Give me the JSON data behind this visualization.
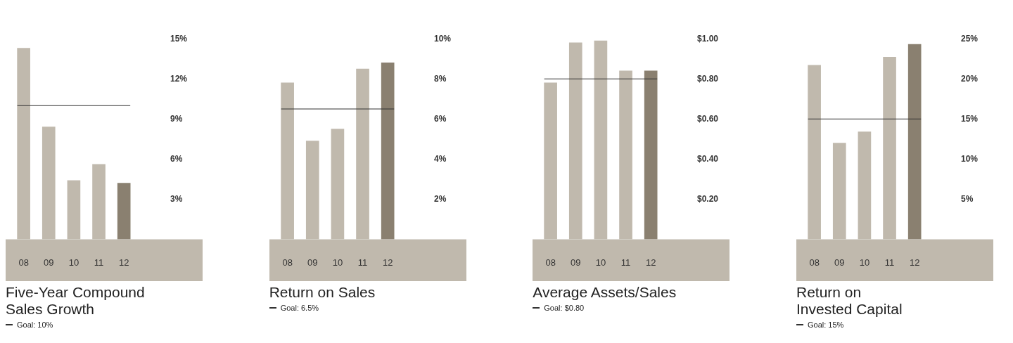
{
  "chart_data": [
    {
      "type": "bar",
      "title": "Five-Year Compound Sales Growth",
      "categories": [
        "08",
        "09",
        "10",
        "11",
        "12"
      ],
      "values": [
        14.3,
        8.4,
        4.4,
        5.6,
        4.2
      ],
      "colors": [
        "#c0b9ad",
        "#c0b9ad",
        "#c0b9ad",
        "#c0b9ad",
        "#8a8070"
      ],
      "ylim": [
        0,
        15
      ],
      "yticks": [
        {
          "value": 3,
          "label": "3%"
        },
        {
          "value": 6,
          "label": "6%"
        },
        {
          "value": 9,
          "label": "9%"
        },
        {
          "value": 12,
          "label": "12%"
        },
        {
          "value": 15,
          "label": "15%"
        }
      ],
      "ref_lines": [
        {
          "axis": "y",
          "value": 10,
          "label": "Goal: 10%",
          "color": "#333333"
        }
      ]
    },
    {
      "type": "bar",
      "title": "Return on Sales",
      "categories": [
        "08",
        "09",
        "10",
        "11",
        "12"
      ],
      "values": [
        7.8,
        4.9,
        5.5,
        8.5,
        8.8
      ],
      "colors": [
        "#c0b9ad",
        "#c0b9ad",
        "#c0b9ad",
        "#c0b9ad",
        "#8a8070"
      ],
      "ylim": [
        0,
        10
      ],
      "yticks": [
        {
          "value": 2,
          "label": "2%"
        },
        {
          "value": 4,
          "label": "4%"
        },
        {
          "value": 6,
          "label": "6%"
        },
        {
          "value": 8,
          "label": "8%"
        },
        {
          "value": 10,
          "label": "10%"
        }
      ],
      "ref_lines": [
        {
          "axis": "y",
          "value": 6.5,
          "label": "Goal: 6.5%",
          "color": "#333333"
        }
      ]
    },
    {
      "type": "bar",
      "title": "Average Assets/Sales",
      "categories": [
        "08",
        "09",
        "10",
        "11",
        "12"
      ],
      "values": [
        0.78,
        0.98,
        0.99,
        0.84,
        0.84
      ],
      "colors": [
        "#c0b9ad",
        "#c0b9ad",
        "#c0b9ad",
        "#c0b9ad",
        "#8a8070"
      ],
      "ylim": [
        0,
        1
      ],
      "yticks": [
        {
          "value": 0.2,
          "label": "$0.20"
        },
        {
          "value": 0.4,
          "label": "$0.40"
        },
        {
          "value": 0.6,
          "label": "$0.60"
        },
        {
          "value": 0.8,
          "label": "$0.80"
        },
        {
          "value": 1,
          "label": "$1.00"
        }
      ],
      "ref_lines": [
        {
          "axis": "y",
          "value": 0.8,
          "label": "Goal: $0.80",
          "color": "#333333"
        }
      ]
    },
    {
      "type": "bar",
      "title": "Return on Invested Capital",
      "categories": [
        "08",
        "09",
        "10",
        "11",
        "12"
      ],
      "values": [
        21.7,
        12.0,
        13.4,
        22.7,
        24.3
      ],
      "colors": [
        "#c0b9ad",
        "#c0b9ad",
        "#c0b9ad",
        "#c0b9ad",
        "#8a8070"
      ],
      "ylim": [
        0,
        25
      ],
      "yticks": [
        {
          "value": 5,
          "label": "5%"
        },
        {
          "value": 10,
          "label": "10%"
        },
        {
          "value": 15,
          "label": "15%"
        },
        {
          "value": 20,
          "label": "20%"
        },
        {
          "value": 25,
          "label": "25%"
        }
      ],
      "ref_lines": [
        {
          "axis": "y",
          "value": 15,
          "label": "Goal: 15%",
          "color": "#333333"
        }
      ]
    }
  ]
}
